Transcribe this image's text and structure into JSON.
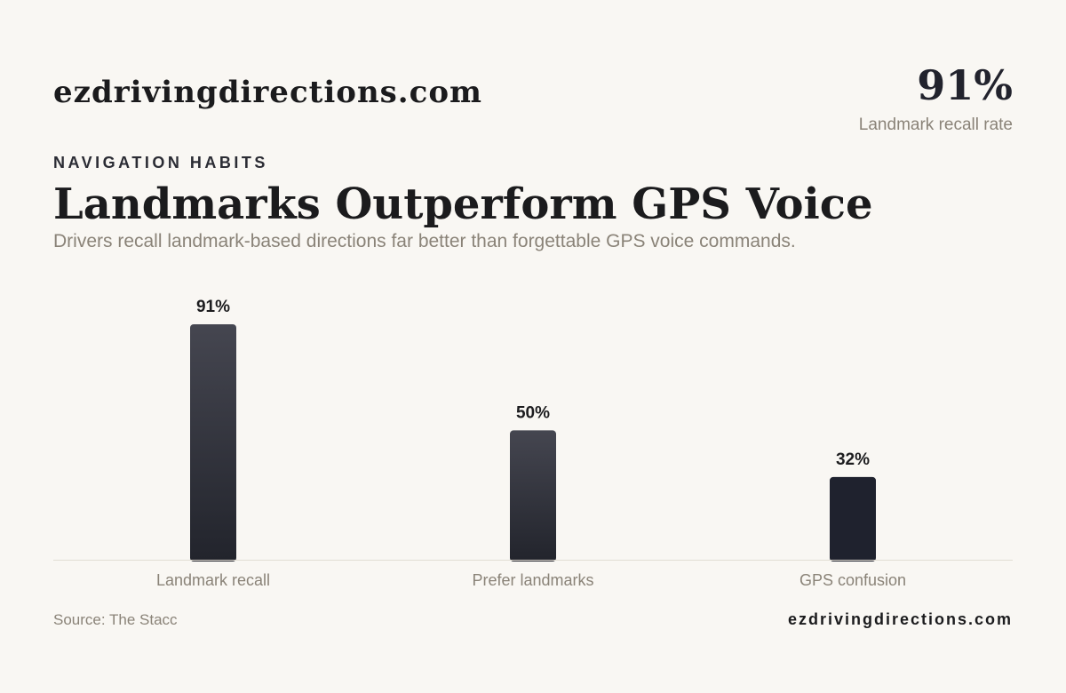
{
  "brand": "ezdrivingdirections.com",
  "highlight": {
    "value": "91%",
    "label": "Landmark recall rate"
  },
  "eyebrow": "NAVIGATION HABITS",
  "title": "Landmarks Outperform GPS Voice",
  "subtitle": "Drivers recall landmark-based directions far better than forgettable GPS voice commands.",
  "footer": {
    "source": "Source: The Stacc",
    "brand": "ezdrivingdirections.com"
  },
  "colors": {
    "bar_top": "#454650",
    "bar_bottom": "#22242c",
    "bar_dark": "#1f222e",
    "baseline": "#e2ddd4",
    "label_text": "#8a8378",
    "value_text": "#1d1d1f"
  },
  "chart_data": {
    "type": "bar",
    "categories": [
      "Landmark recall",
      "Prefer landmarks",
      "GPS confusion"
    ],
    "values": [
      91,
      50,
      32
    ],
    "value_labels": [
      "91%",
      "50%",
      "32%"
    ],
    "ylim": [
      0,
      100
    ],
    "grid": false,
    "legend": "none",
    "xlabel": "",
    "ylabel": ""
  }
}
